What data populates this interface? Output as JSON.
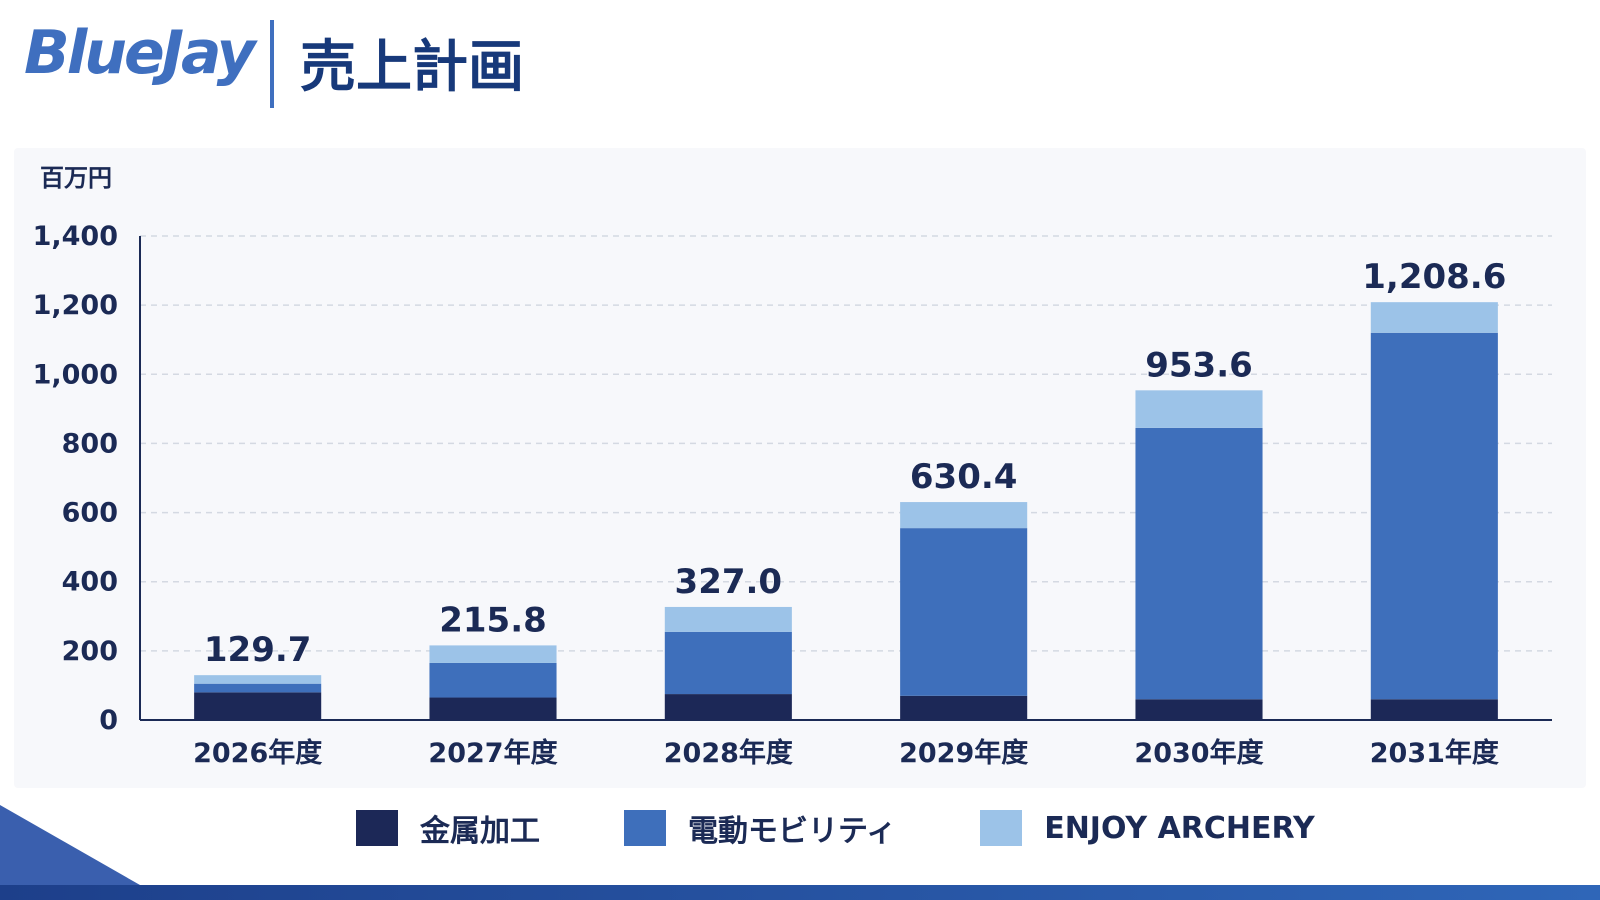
{
  "header": {
    "logo_text": "BlueJay",
    "page_title": "売上計画"
  },
  "chart_data": {
    "type": "bar",
    "stacked": true,
    "ylabel": "百万円",
    "ylim": [
      0,
      1400
    ],
    "yticks": [
      0,
      200,
      400,
      600,
      800,
      1000,
      1200,
      1400
    ],
    "ytick_labels": [
      "0",
      "200",
      "400",
      "600",
      "800",
      "1,000",
      "1,200",
      "1,400"
    ],
    "grid": true,
    "categories": [
      "2026年度",
      "2027年度",
      "2028年度",
      "2029年度",
      "2030年度",
      "2031年度"
    ],
    "series": [
      {
        "name": "金属加工",
        "color": "#1c2857",
        "values": [
          80,
          65,
          75,
          70,
          60,
          60
        ]
      },
      {
        "name": "電動モビリティ",
        "color": "#3e6fbb",
        "values": [
          25,
          100,
          180,
          485,
          785,
          1060
        ]
      },
      {
        "name": "ENJOY ARCHERY",
        "color": "#9cc3e8",
        "values": [
          24.7,
          50.8,
          72.0,
          75.4,
          108.6,
          88.6
        ]
      }
    ],
    "totals": [
      "129.7",
      "215.8",
      "327.0",
      "630.4",
      "953.6",
      "1,208.6"
    ],
    "legend_position": "bottom"
  }
}
